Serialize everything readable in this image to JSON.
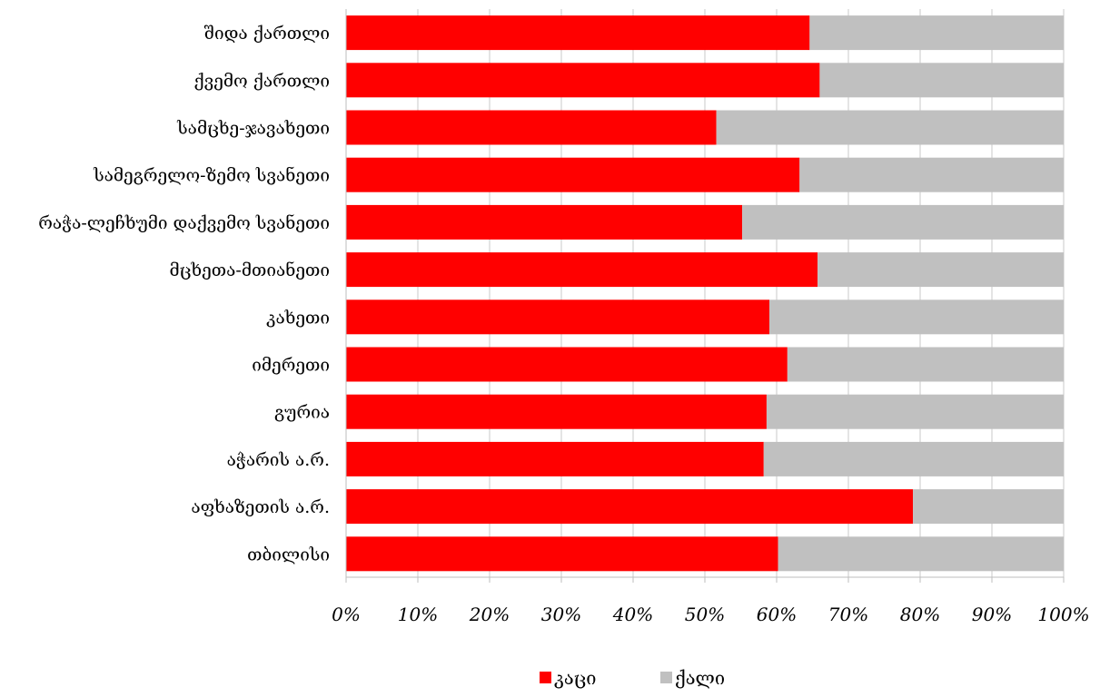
{
  "chart_data": {
    "type": "bar",
    "orientation": "horizontal",
    "stacked": "percent",
    "categories": [
      "შიდა ქართლი",
      "ქვემო ქართლი",
      "სამცხე-ჯავახეთი",
      "სამეგრელო-ზემო სვანეთი",
      "რაჭა-ლეჩხუმი დაქვემო სვანეთი",
      "მცხეთა-მთიანეთი",
      "კახეთი",
      "იმერეთი",
      "გურია",
      "აჭარის ა.რ.",
      "აფხაზეთის ა.რ.",
      "თბილისი"
    ],
    "series": [
      {
        "name": "კაცი",
        "color": "#ff0000",
        "values": [
          64.6,
          66.0,
          51.6,
          63.2,
          55.2,
          65.7,
          59.0,
          61.5,
          58.6,
          58.2,
          79.0,
          60.2
        ]
      },
      {
        "name": "ქალი",
        "color": "#c0c0c0",
        "values": [
          35.4,
          34.0,
          48.4,
          36.8,
          44.8,
          34.3,
          41.0,
          38.5,
          41.4,
          41.8,
          21.0,
          39.8
        ]
      }
    ],
    "x_ticks": [
      "0%",
      "10%",
      "20%",
      "30%",
      "40%",
      "50%",
      "60%",
      "70%",
      "80%",
      "90%",
      "100%"
    ],
    "xlim": [
      0,
      100
    ],
    "grid": "vertical",
    "legend_position": "bottom"
  }
}
